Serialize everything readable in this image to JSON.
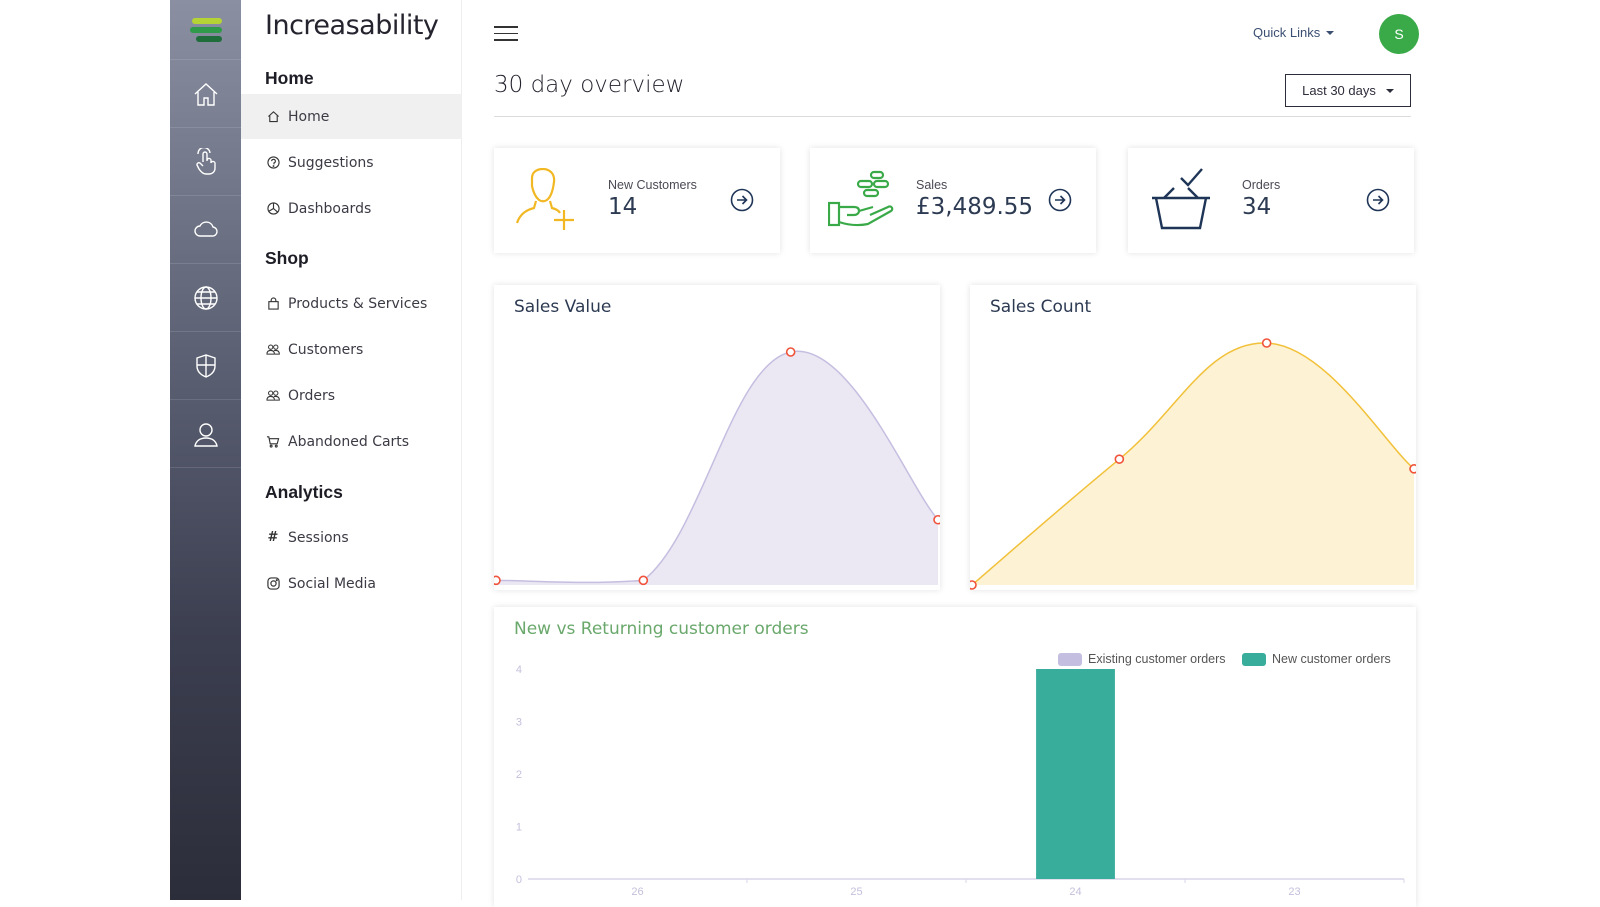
{
  "brand": {
    "name": "Increasability"
  },
  "rail": {
    "icons": [
      "home-icon",
      "hand-pointer-icon",
      "cloud-icon",
      "globe-icon",
      "shield-icon",
      "user-icon"
    ]
  },
  "sidebar": {
    "sections": [
      {
        "title": "Home",
        "items": [
          {
            "label": "Home",
            "icon": "home-icon",
            "active": true
          },
          {
            "label": "Suggestions",
            "icon": "question-icon"
          },
          {
            "label": "Dashboards",
            "icon": "pie-chart-icon"
          }
        ]
      },
      {
        "title": "Shop",
        "items": [
          {
            "label": "Products & Services",
            "icon": "bag-icon"
          },
          {
            "label": "Customers",
            "icon": "users-icon"
          },
          {
            "label": "Orders",
            "icon": "users-icon"
          },
          {
            "label": "Abandoned Carts",
            "icon": "cart-icon"
          }
        ]
      },
      {
        "title": "Analytics",
        "items": [
          {
            "label": "Sessions",
            "icon": "hash-icon"
          },
          {
            "label": "Social Media",
            "icon": "instagram-icon"
          }
        ]
      }
    ]
  },
  "topbar": {
    "quick_links": "Quick Links",
    "avatar_initial": "S"
  },
  "page": {
    "title": "30 day overview",
    "range_label": "Last 30 days"
  },
  "stats": [
    {
      "label": "New Customers",
      "value": "14",
      "color": "#f2b824"
    },
    {
      "label": "Sales",
      "value": "£3,489.55",
      "color": "#3aaa49"
    },
    {
      "label": "Orders",
      "value": "34",
      "color": "#1f3557"
    }
  ],
  "chart_data": [
    {
      "type": "area",
      "title": "Sales Value",
      "points": [
        0.02,
        0.02,
        1.0,
        0.28
      ],
      "color": "#c6bee0",
      "fill": "#ebe7f3",
      "marker": "#f0523a"
    },
    {
      "type": "area",
      "title": "Sales Count",
      "points": [
        0.0,
        0.52,
        1.0,
        0.48
      ],
      "color": "#f2c13a",
      "fill": "#fdf2d3",
      "marker": "#f0523a"
    },
    {
      "type": "bar",
      "title": "New vs Returning customer orders",
      "categories": [
        "26",
        "25",
        "24",
        "23"
      ],
      "series": [
        {
          "name": "Existing customer orders",
          "values": [
            0,
            0,
            0,
            0
          ],
          "color": "#c4bfe0"
        },
        {
          "name": "New customer orders",
          "values": [
            0,
            0,
            4,
            0
          ],
          "color": "#38ad9b"
        }
      ],
      "yticks": [
        "0",
        "1",
        "2",
        "3",
        "4"
      ],
      "ylim": [
        0,
        4
      ]
    }
  ]
}
